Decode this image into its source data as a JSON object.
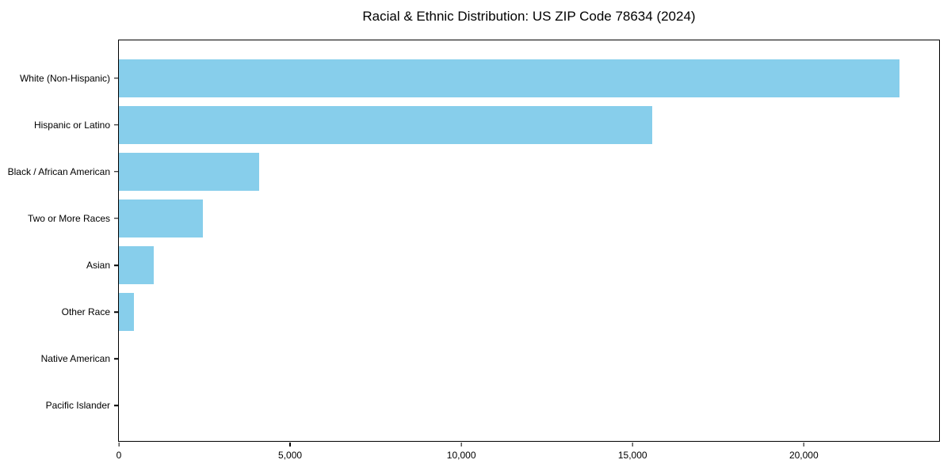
{
  "title": "Racial & Ethnic Distribution: US ZIP Code 78634 (2024)",
  "colors": {
    "bar": "#87CEEB",
    "axis": "#000000",
    "background": "#FFFFFF",
    "text": "#000000"
  },
  "chart_data": {
    "type": "bar",
    "orientation": "horizontal",
    "title": "Racial & Ethnic Distribution: US ZIP Code 78634 (2024)",
    "categories": [
      "White (Non-Hispanic)",
      "Hispanic or Latino",
      "Black / African American",
      "Two or More Races",
      "Asian",
      "Other Race",
      "Native American",
      "Pacific Islander"
    ],
    "values": [
      22800,
      15580,
      4100,
      2450,
      1020,
      450,
      0,
      0
    ],
    "xlabel": "",
    "ylabel": "",
    "xlim": [
      0,
      23950
    ],
    "x_ticks": [
      0,
      5000,
      10000,
      15000,
      20000
    ],
    "x_tick_labels": [
      "0",
      "5,000",
      "10,000",
      "15,000",
      "20,000"
    ],
    "grid": false,
    "legend": null,
    "bar_color": "#87CEEB"
  }
}
